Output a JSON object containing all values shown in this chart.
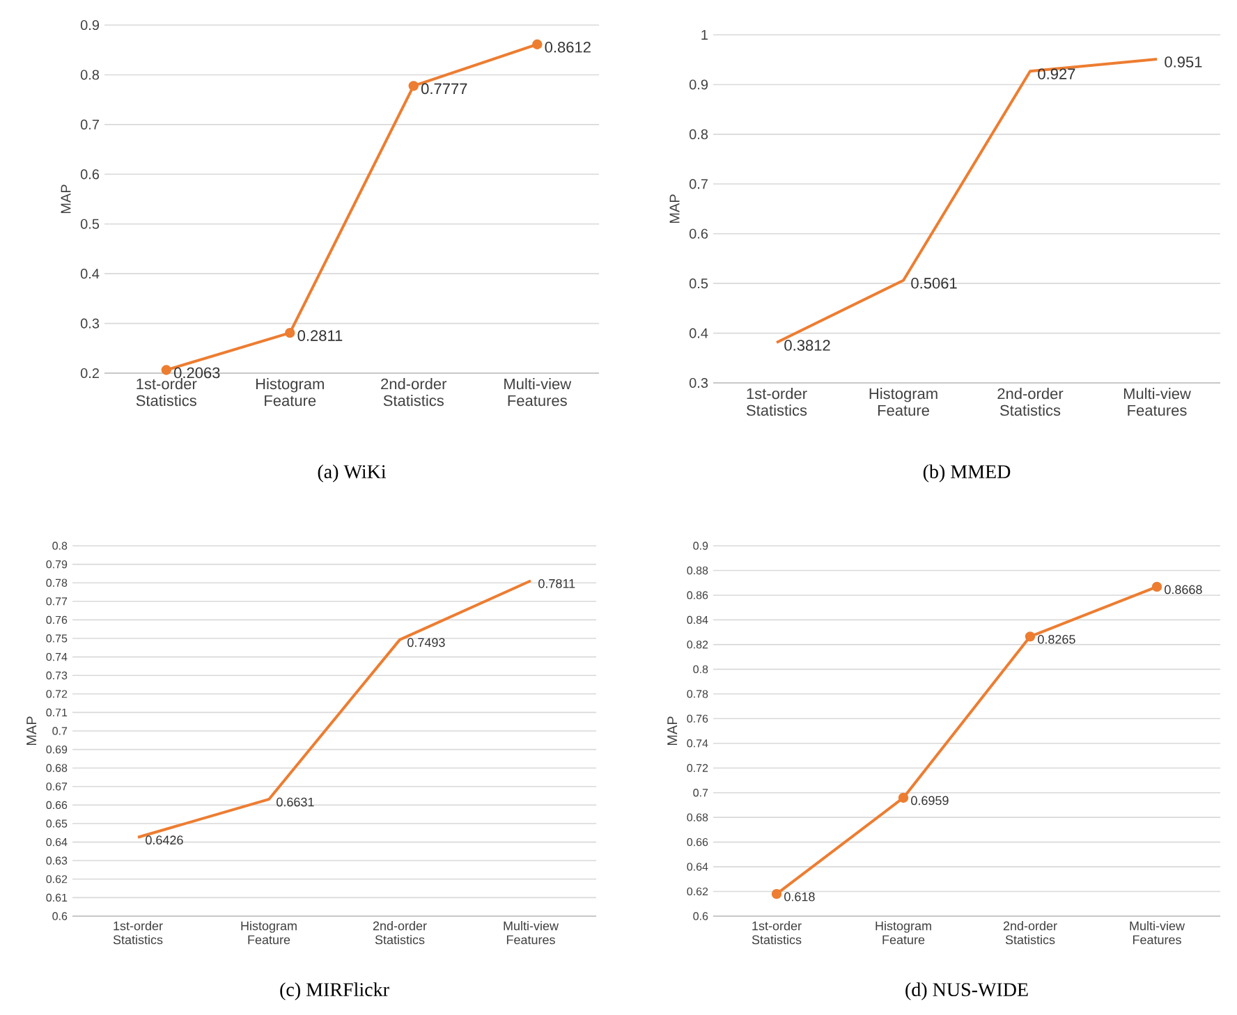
{
  "chart_data": [
    {
      "type": "line",
      "title": "(a)  WiKi",
      "ylabel": "MAP",
      "categories": [
        "1st-order Statistics",
        "Histogram Feature",
        "2nd-order Statistics",
        "Multi-view Features"
      ],
      "values": [
        0.2063,
        0.2811,
        0.7777,
        0.8612
      ],
      "color": "#ed7d31",
      "ylim": [
        0.2,
        0.9
      ],
      "yticks": [
        0.2,
        0.3,
        0.4,
        0.5,
        0.6,
        0.7,
        0.8,
        0.9
      ],
      "grid": "y",
      "marker": "circle",
      "data_labels": true
    },
    {
      "type": "line",
      "title": "(b)  MMED",
      "ylabel": "MAP",
      "categories": [
        "1st-order Statistics",
        "Histogram Feature",
        "2nd-order Statistics",
        "Multi-view Features"
      ],
      "values": [
        0.3812,
        0.5061,
        0.927,
        0.951
      ],
      "color": "#ed7d31",
      "ylim": [
        0.3,
        1
      ],
      "yticks": [
        0.3,
        0.4,
        0.5,
        0.6,
        0.7,
        0.8,
        0.9,
        1
      ],
      "grid": "y",
      "data_labels": true
    },
    {
      "type": "line",
      "title": "(c)  MIRFlickr",
      "ylabel": "MAP",
      "categories": [
        "1st-order Statistics",
        "Histogram Feature",
        "2nd-order Statistics",
        "Multi-view Features"
      ],
      "values": [
        0.6426,
        0.6631,
        0.7493,
        0.7811
      ],
      "color": "#ed7d31",
      "ylim": [
        0.6,
        0.8
      ],
      "yticks": [
        0.6,
        0.61,
        0.62,
        0.63,
        0.64,
        0.65,
        0.66,
        0.67,
        0.68,
        0.69,
        0.7,
        0.71,
        0.72,
        0.73,
        0.74,
        0.75,
        0.76,
        0.77,
        0.78,
        0.79,
        0.8
      ],
      "grid": "y",
      "data_labels": true
    },
    {
      "type": "line",
      "title": "(d)  NUS-WIDE",
      "ylabel": "MAP",
      "categories": [
        "1st-order Statistics",
        "Histogram Feature",
        "2nd-order Statistics",
        "Multi-view Features"
      ],
      "values": [
        0.618,
        0.6959,
        0.8265,
        0.8668
      ],
      "color": "#ed7d31",
      "ylim": [
        0.6,
        0.9
      ],
      "yticks": [
        0.6,
        0.62,
        0.64,
        0.66,
        0.68,
        0.7,
        0.72,
        0.74,
        0.76,
        0.78,
        0.8,
        0.82,
        0.84,
        0.86,
        0.88,
        0.9
      ],
      "grid": "y",
      "marker": "circle",
      "data_labels": true
    }
  ]
}
